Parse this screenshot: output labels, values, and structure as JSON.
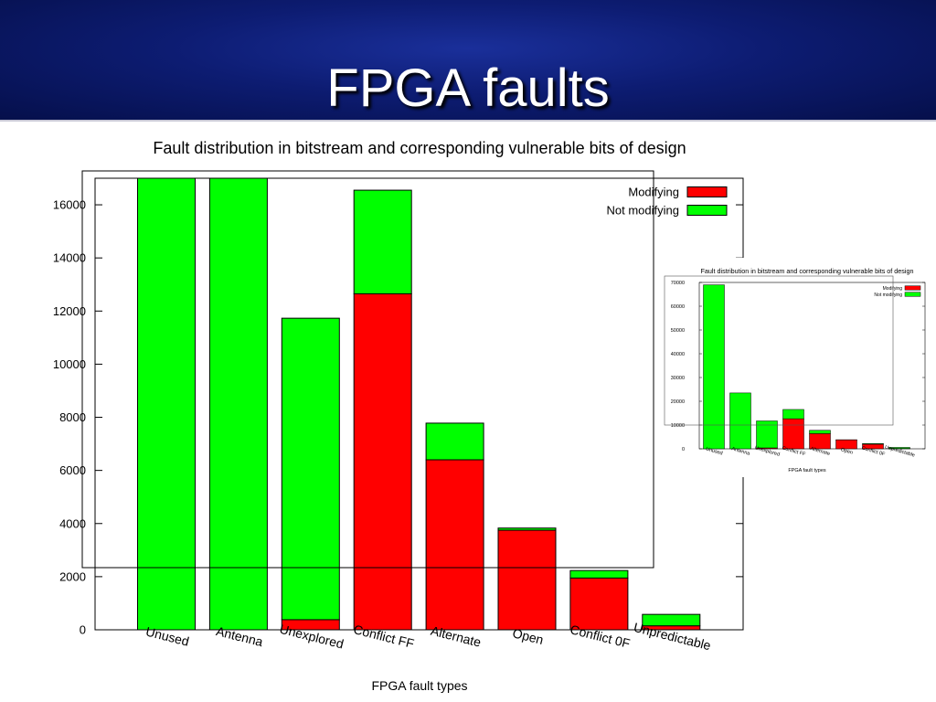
{
  "slide": {
    "title": "FPGA faults"
  },
  "chart_data": [
    {
      "type": "bar",
      "stacked": true,
      "title": "Fault distribution in bitstream and corresponding vulnerable bits of design",
      "xlabel": "FPGA fault types",
      "ylabel": "",
      "ylim": [
        0,
        17000
      ],
      "yticks": [
        0,
        2000,
        4000,
        6000,
        8000,
        10000,
        12000,
        14000,
        16000
      ],
      "categories": [
        "Unused",
        "Antenna",
        "Unexplored",
        "Conflict FF",
        "Alternate",
        "Open",
        "Conflict 0F",
        "Unpredictable"
      ],
      "series": [
        {
          "name": "Modifying",
          "color": "#ff0000",
          "values": [
            0,
            0,
            380,
            12650,
            6400,
            3750,
            1950,
            150
          ]
        },
        {
          "name": "Not modifying",
          "color": "#00ff00",
          "values": [
            17000,
            17000,
            11350,
            3900,
            1380,
            80,
            280,
            430
          ]
        }
      ],
      "legend": "top-right",
      "grid": false
    },
    {
      "type": "bar",
      "stacked": true,
      "title": "Fault distribution in bitstream and corresponding vulnerable bits of design",
      "xlabel": "FPGA fault types",
      "ylabel": "",
      "ylim": [
        0,
        70000
      ],
      "yticks": [
        0,
        10000,
        20000,
        30000,
        40000,
        50000,
        60000,
        70000
      ],
      "categories": [
        "Unused",
        "Antenna",
        "Unexplored",
        "Conflict FF",
        "Alternate",
        "Open",
        "Conflict 0F",
        "Unpredictable"
      ],
      "series": [
        {
          "name": "Modifying",
          "color": "#ff0000",
          "values": [
            0,
            0,
            380,
            12650,
            6400,
            3750,
            1950,
            150
          ]
        },
        {
          "name": "Not modifying",
          "color": "#00ff00",
          "values": [
            69000,
            23500,
            11350,
            3900,
            1380,
            80,
            280,
            430
          ]
        }
      ],
      "legend": "top-right",
      "grid": false
    }
  ]
}
